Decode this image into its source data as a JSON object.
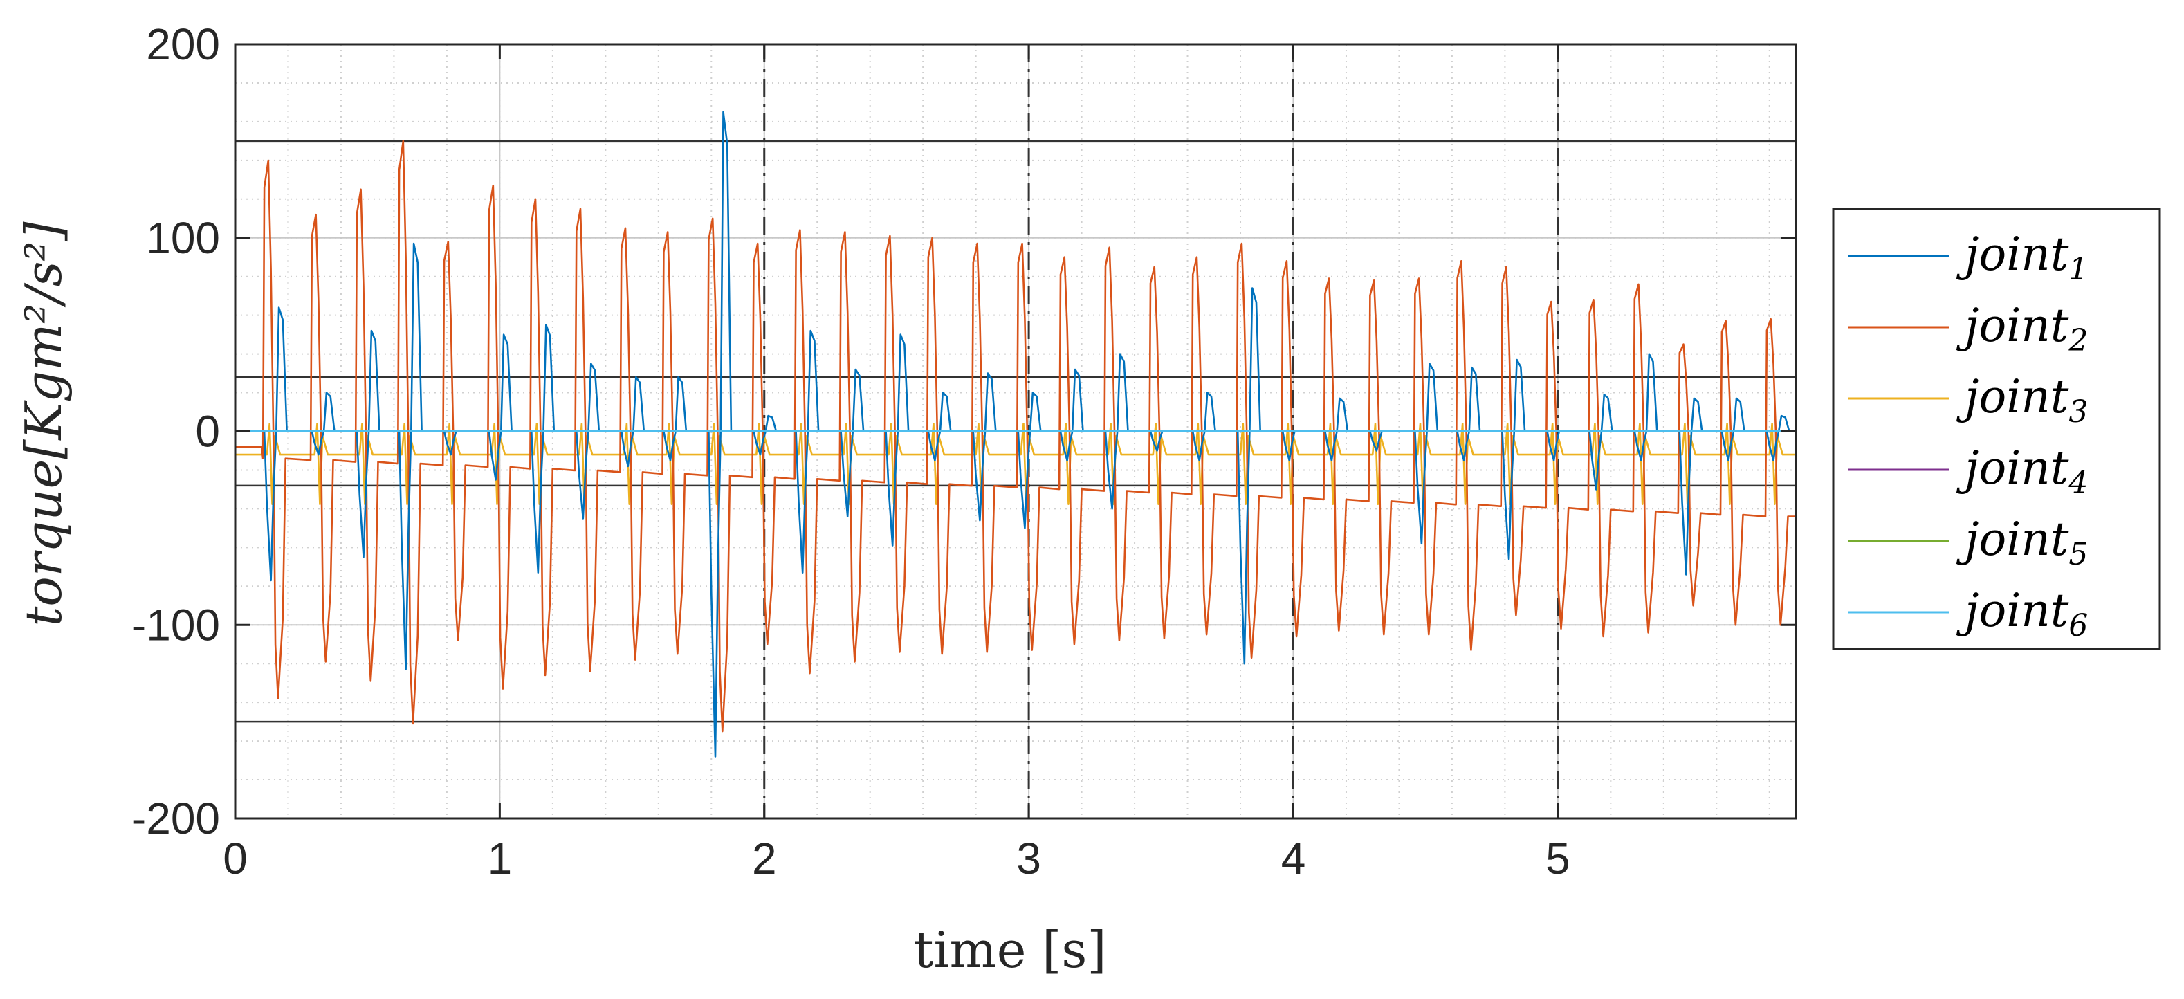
{
  "chart_data": {
    "type": "line",
    "title": "",
    "xlabel": "time [s]",
    "ylabel": "torque",
    "ylabel_unit": "[Kgm²/s²]",
    "xlim": [
      0,
      5.9
    ],
    "ylim": [
      -200,
      200
    ],
    "x_ticks": [
      0,
      1,
      2,
      3,
      4,
      5
    ],
    "x_tick_labels": [
      "0",
      "1",
      "2",
      "3",
      "4",
      "5"
    ],
    "y_ticks": [
      -200,
      -100,
      0,
      100,
      200
    ],
    "y_tick_labels": [
      "-200",
      "-100",
      "0",
      "100",
      "200"
    ],
    "grid": "minor-dotted",
    "legend_position": "outside-right",
    "reference_lines": [
      {
        "kind": "horizontal",
        "value": 150
      },
      {
        "kind": "horizontal",
        "value": 28
      },
      {
        "kind": "horizontal",
        "value": -28
      },
      {
        "kind": "horizontal",
        "value": -150
      },
      {
        "kind": "vertical-dashdot",
        "value": 2
      },
      {
        "kind": "vertical-dashdot",
        "value": 3
      },
      {
        "kind": "vertical-dashdot",
        "value": 4
      },
      {
        "kind": "vertical-dashdot",
        "value": 5
      }
    ],
    "spike_times": [
      0.15,
      0.33,
      0.5,
      0.66,
      0.83,
      1.0,
      1.16,
      1.33,
      1.5,
      1.66,
      1.83,
      2.0,
      2.16,
      2.33,
      2.5,
      2.66,
      2.83,
      3.0,
      3.16,
      3.33,
      3.5,
      3.66,
      3.83,
      4.0,
      4.16,
      4.33,
      4.5,
      4.66,
      4.83,
      5.0,
      5.16,
      5.33,
      5.5,
      5.66,
      5.83
    ],
    "series": [
      {
        "name": "joint",
        "subscript": "1",
        "color": "#0072BD",
        "baseline": 0,
        "peaks": [
          64,
          20,
          52,
          97,
          0,
          50,
          55,
          35,
          28,
          28,
          165,
          8,
          52,
          32,
          50,
          20,
          30,
          20,
          32,
          40,
          0,
          20,
          74,
          0,
          17,
          0,
          35,
          33,
          37,
          0,
          19,
          40,
          17,
          17,
          8
        ],
        "troughs": [
          -77,
          -12,
          -65,
          -123,
          -12,
          -25,
          -73,
          -45,
          -18,
          -15,
          -168,
          -12,
          -73,
          -44,
          -59,
          -15,
          -46,
          -50,
          -15,
          -40,
          -10,
          -15,
          -120,
          -15,
          -15,
          -10,
          -58,
          -15,
          -66,
          -15,
          -30,
          -15,
          -74,
          -15,
          -15
        ]
      },
      {
        "name": "joint",
        "subscript": "2",
        "color": "#D95319",
        "baseline_start": -14,
        "baseline_end": -44,
        "peaks": [
          140,
          112,
          125,
          150,
          98,
          127,
          120,
          115,
          105,
          103,
          110,
          97,
          104,
          103,
          101,
          100,
          97,
          97,
          90,
          95,
          85,
          90,
          97,
          88,
          79,
          78,
          79,
          88,
          85,
          67,
          68,
          76,
          45,
          57,
          58
        ],
        "troughs": [
          -138,
          -119,
          -129,
          -151,
          -108,
          -133,
          -126,
          -124,
          -118,
          -115,
          -155,
          -110,
          -125,
          -119,
          -114,
          -115,
          -114,
          -113,
          -110,
          -108,
          -107,
          -105,
          -117,
          -106,
          -103,
          -105,
          -105,
          -113,
          -95,
          -102,
          -106,
          -104,
          -90,
          -100,
          -100
        ]
      },
      {
        "name": "joint",
        "subscript": "3",
        "color": "#EDB120",
        "baseline": -12,
        "spike_amplitude": 16
      },
      {
        "name": "joint",
        "subscript": "4",
        "color": "#7E2F8E",
        "baseline": 0
      },
      {
        "name": "joint",
        "subscript": "5",
        "color": "#77AC30",
        "baseline": 0
      },
      {
        "name": "joint",
        "subscript": "6",
        "color": "#4DBEEE",
        "baseline": 0
      }
    ]
  }
}
